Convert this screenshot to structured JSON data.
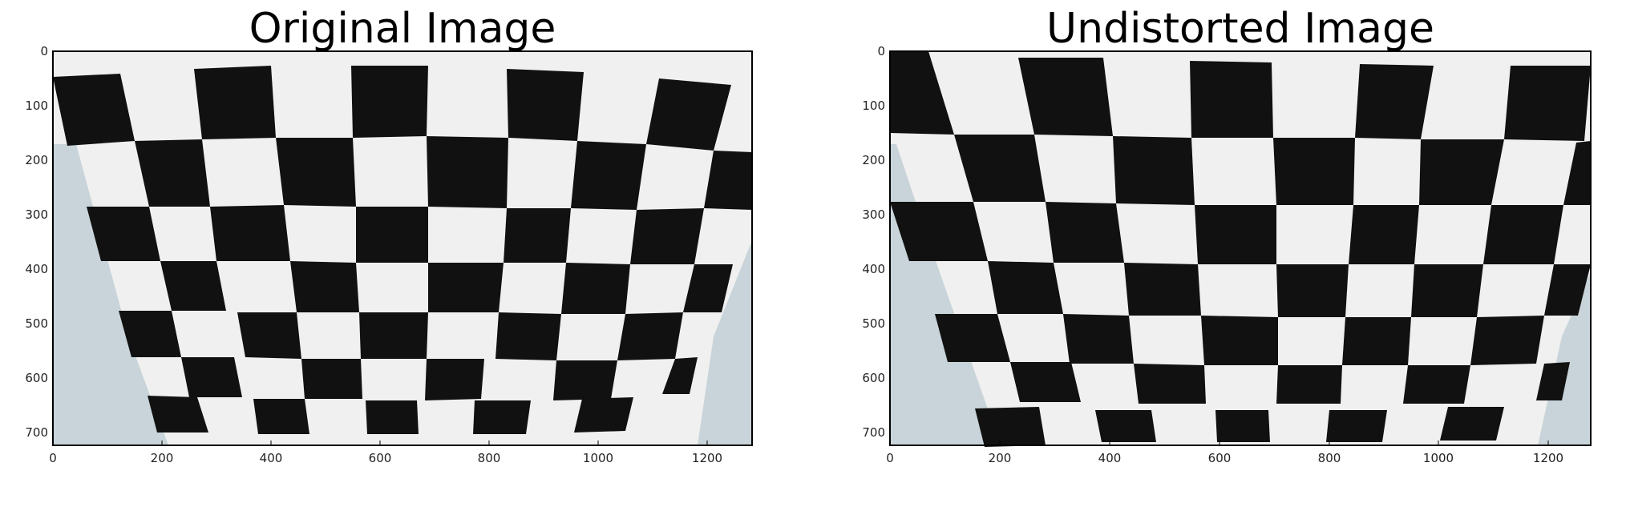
{
  "figure": {
    "panels": [
      {
        "title": "Original Image",
        "x_ticks": [
          "0",
          "200",
          "400",
          "600",
          "800",
          "1000",
          "1200"
        ],
        "y_ticks": [
          "0",
          "100",
          "200",
          "300",
          "400",
          "500",
          "600",
          "700"
        ]
      },
      {
        "title": "Undistorted Image",
        "x_ticks": [
          "0",
          "200",
          "400",
          "600",
          "800",
          "1000",
          "1200"
        ],
        "y_ticks": [
          "0",
          "100",
          "200",
          "300",
          "400",
          "500",
          "600",
          "700"
        ]
      }
    ],
    "image_size": {
      "width": 1280,
      "height": 720
    },
    "colors": {
      "paper": "#efefef",
      "square": "#111111",
      "wall": "#c7d3d8",
      "frame": "#000000"
    }
  }
}
